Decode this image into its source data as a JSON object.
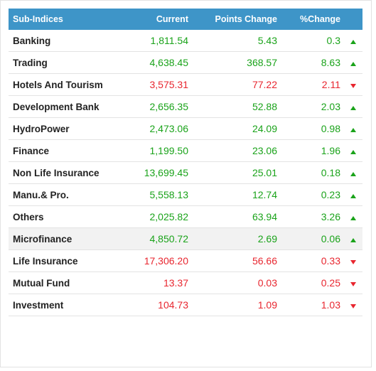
{
  "table": {
    "headers": {
      "name": "Sub-Indices",
      "current": "Current",
      "points_change": "Points Change",
      "percent_change": "%Change"
    },
    "rows": [
      {
        "name": "Banking",
        "current": "1,811.54",
        "points_change": "5.43",
        "percent_change": "0.3",
        "direction": "up"
      },
      {
        "name": "Trading",
        "current": "4,638.45",
        "points_change": "368.57",
        "percent_change": "8.63",
        "direction": "up"
      },
      {
        "name": "Hotels And Tourism",
        "current": "3,575.31",
        "points_change": "77.22",
        "percent_change": "2.11",
        "direction": "down"
      },
      {
        "name": "Development Bank",
        "current": "2,656.35",
        "points_change": "52.88",
        "percent_change": "2.03",
        "direction": "up"
      },
      {
        "name": "HydroPower",
        "current": "2,473.06",
        "points_change": "24.09",
        "percent_change": "0.98",
        "direction": "up"
      },
      {
        "name": "Finance",
        "current": "1,199.50",
        "points_change": "23.06",
        "percent_change": "1.96",
        "direction": "up"
      },
      {
        "name": "Non Life Insurance",
        "current": "13,699.45",
        "points_change": "25.01",
        "percent_change": "0.18",
        "direction": "up"
      },
      {
        "name": "Manu.& Pro.",
        "current": "5,558.13",
        "points_change": "12.74",
        "percent_change": "0.23",
        "direction": "up"
      },
      {
        "name": "Others",
        "current": "2,025.82",
        "points_change": "63.94",
        "percent_change": "3.26",
        "direction": "up"
      },
      {
        "name": "Microfinance",
        "current": "4,850.72",
        "points_change": "2.69",
        "percent_change": "0.06",
        "direction": "up",
        "highlighted": true
      },
      {
        "name": "Life Insurance",
        "current": "17,306.20",
        "points_change": "56.66",
        "percent_change": "0.33",
        "direction": "down"
      },
      {
        "name": "Mutual Fund",
        "current": "13.37",
        "points_change": "0.03",
        "percent_change": "0.25",
        "direction": "down"
      },
      {
        "name": "Investment",
        "current": "104.73",
        "points_change": "1.09",
        "percent_change": "1.03",
        "direction": "down"
      }
    ]
  },
  "colors": {
    "header_bg": "#3e95c8",
    "up": "#1aa31a",
    "down": "#e8262f",
    "row_highlight": "#f2f2f2"
  },
  "icons": {
    "up": "triangle-up-icon",
    "down": "triangle-down-icon"
  }
}
